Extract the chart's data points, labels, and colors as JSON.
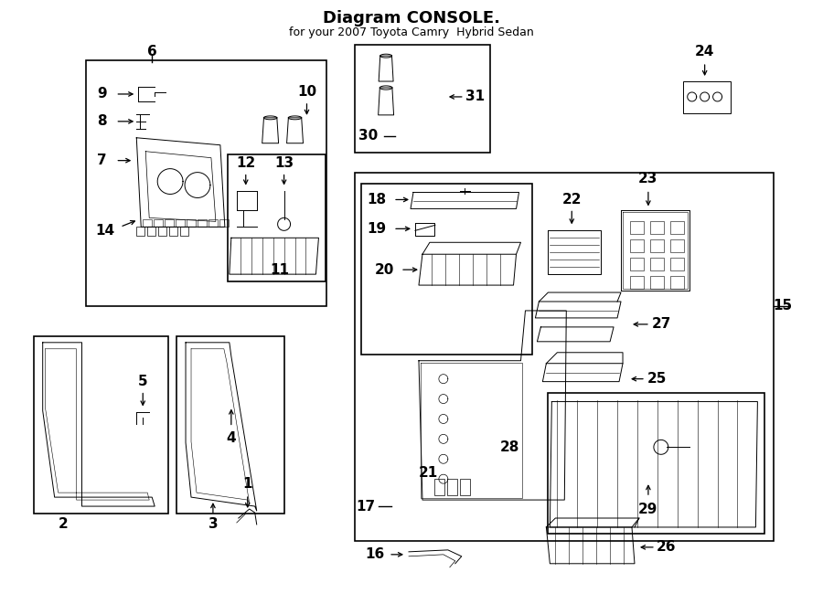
{
  "title": "Diagram CONSOLE.",
  "subtitle": "for your 2007 Toyota Camry  Hybrid Sedan",
  "bg_color": "#ffffff",
  "text_color": "#000000",
  "fig_width": 9.0,
  "fig_height": 6.61,
  "dpi": 100
}
